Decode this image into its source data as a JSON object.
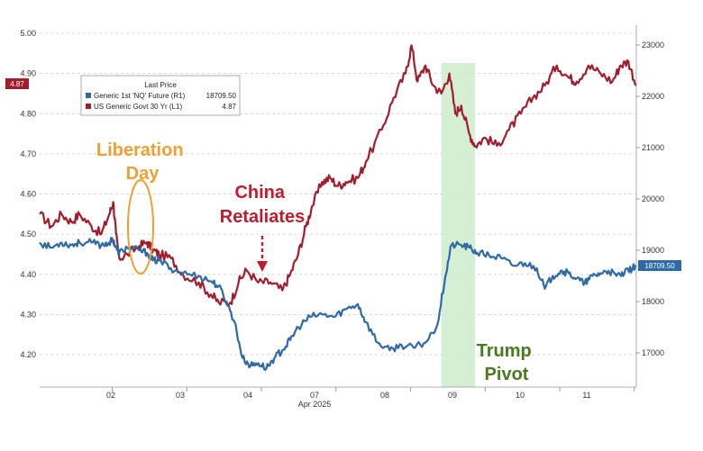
{
  "chart_data": {
    "type": "line",
    "x_label": "Apr 2025",
    "x_ticks": [
      "02",
      "03",
      "04",
      "07",
      "08",
      "09",
      "10",
      "11"
    ],
    "y_left": {
      "range": [
        4.12,
        5.0
      ],
      "ticks": [
        "5.00",
        "4.90",
        "4.80",
        "4.70",
        "4.60",
        "4.50",
        "4.40",
        "4.30",
        "4.20"
      ]
    },
    "y_right": {
      "range": [
        16450,
        23300
      ],
      "ticks": [
        "23000",
        "22000",
        "21000",
        "20000",
        "19000",
        "18000",
        "17000"
      ]
    },
    "grid": true,
    "legend": {
      "title": "Last Price",
      "placement": "top-left",
      "entries": [
        {
          "label": "Generic 1st 'NQ' Future (R1)",
          "value": "18709.50",
          "color": "#2d6aa6"
        },
        {
          "label": "US Generic Govt 30 Yr (L1)",
          "value": "4.87",
          "color": "#a21d2c"
        }
      ]
    },
    "current_labels": {
      "left": "4.87",
      "right": "18709.50"
    },
    "series": [
      {
        "name": "US Generic Govt 30 Yr (L1)",
        "axis": "left",
        "color": "#a21d2c",
        "points": [
          [
            0.0,
            4.55
          ],
          [
            0.3,
            4.52
          ],
          [
            0.55,
            4.55
          ],
          [
            0.8,
            4.53
          ],
          [
            1.0,
            4.55
          ],
          [
            1.3,
            4.52
          ],
          [
            1.55,
            4.5
          ],
          [
            1.75,
            4.55
          ],
          [
            1.85,
            4.58
          ],
          [
            1.92,
            4.5
          ],
          [
            2.0,
            4.44
          ],
          [
            2.2,
            4.45
          ],
          [
            2.5,
            4.47
          ],
          [
            2.7,
            4.48
          ],
          [
            2.85,
            4.46
          ],
          [
            3.0,
            4.45
          ],
          [
            3.3,
            4.44
          ],
          [
            3.6,
            4.4
          ],
          [
            4.0,
            4.38
          ],
          [
            4.3,
            4.35
          ],
          [
            4.5,
            4.33
          ],
          [
            4.8,
            4.33
          ],
          [
            5.0,
            4.38
          ],
          [
            5.2,
            4.41
          ],
          [
            5.5,
            4.38
          ],
          [
            5.8,
            4.38
          ],
          [
            6.1,
            4.36
          ],
          [
            6.3,
            4.4
          ],
          [
            6.5,
            4.45
          ],
          [
            6.7,
            4.52
          ],
          [
            6.85,
            4.57
          ],
          [
            7.1,
            4.63
          ],
          [
            7.3,
            4.64
          ],
          [
            7.5,
            4.62
          ],
          [
            7.7,
            4.63
          ],
          [
            8.0,
            4.64
          ],
          [
            8.2,
            4.68
          ],
          [
            8.6,
            4.76
          ],
          [
            8.9,
            4.84
          ],
          [
            9.2,
            4.9
          ],
          [
            9.35,
            4.97
          ],
          [
            9.5,
            4.88
          ],
          [
            9.7,
            4.92
          ],
          [
            9.9,
            4.87
          ],
          [
            10.1,
            4.85
          ],
          [
            10.3,
            4.9
          ],
          [
            10.45,
            4.8
          ],
          [
            10.6,
            4.82
          ],
          [
            10.8,
            4.75
          ],
          [
            10.95,
            4.72
          ],
          [
            11.2,
            4.74
          ],
          [
            11.5,
            4.72
          ],
          [
            11.8,
            4.76
          ],
          [
            12.1,
            4.8
          ],
          [
            12.4,
            4.84
          ],
          [
            12.7,
            4.87
          ],
          [
            13.0,
            4.92
          ],
          [
            13.3,
            4.89
          ],
          [
            13.5,
            4.88
          ],
          [
            13.8,
            4.92
          ],
          [
            14.1,
            4.9
          ],
          [
            14.4,
            4.88
          ],
          [
            14.6,
            4.92
          ],
          [
            14.8,
            4.93
          ],
          [
            15.0,
            4.87
          ]
        ]
      },
      {
        "name": "Generic 1st 'NQ' Future (R1)",
        "axis": "right",
        "color": "#2d6aa6",
        "points": [
          [
            0.0,
            19150
          ],
          [
            0.3,
            19050
          ],
          [
            0.55,
            19150
          ],
          [
            0.8,
            19100
          ],
          [
            1.0,
            19150
          ],
          [
            1.3,
            19150
          ],
          [
            1.55,
            19100
          ],
          [
            1.75,
            19150
          ],
          [
            1.85,
            19200
          ],
          [
            1.92,
            19050
          ],
          [
            2.0,
            18950
          ],
          [
            2.2,
            19050
          ],
          [
            2.5,
            19000
          ],
          [
            2.7,
            18950
          ],
          [
            2.85,
            18800
          ],
          [
            3.0,
            18800
          ],
          [
            3.3,
            18650
          ],
          [
            3.6,
            18550
          ],
          [
            4.0,
            18500
          ],
          [
            4.3,
            18400
          ],
          [
            4.5,
            18300
          ],
          [
            4.7,
            18000
          ],
          [
            4.9,
            17600
          ],
          [
            5.1,
            16900
          ],
          [
            5.3,
            16750
          ],
          [
            5.5,
            16800
          ],
          [
            5.7,
            16700
          ],
          [
            5.9,
            16900
          ],
          [
            6.1,
            17050
          ],
          [
            6.3,
            17250
          ],
          [
            6.5,
            17500
          ],
          [
            6.8,
            17700
          ],
          [
            7.1,
            17750
          ],
          [
            7.4,
            17700
          ],
          [
            7.7,
            17850
          ],
          [
            8.0,
            17950
          ],
          [
            8.2,
            17600
          ],
          [
            8.5,
            17200
          ],
          [
            8.8,
            17050
          ],
          [
            9.1,
            17150
          ],
          [
            9.4,
            17100
          ],
          [
            9.7,
            17200
          ],
          [
            10.0,
            17550
          ],
          [
            10.2,
            18500
          ],
          [
            10.35,
            19100
          ],
          [
            10.6,
            19100
          ],
          [
            10.8,
            19050
          ],
          [
            11.0,
            18950
          ],
          [
            11.3,
            18900
          ],
          [
            11.6,
            18850
          ],
          [
            11.9,
            18700
          ],
          [
            12.2,
            18750
          ],
          [
            12.5,
            18650
          ],
          [
            12.7,
            18250
          ],
          [
            12.9,
            18500
          ],
          [
            13.1,
            18600
          ],
          [
            13.3,
            18550
          ],
          [
            13.5,
            18450
          ],
          [
            13.7,
            18350
          ],
          [
            13.9,
            18500
          ],
          [
            14.1,
            18550
          ],
          [
            14.3,
            18600
          ],
          [
            14.5,
            18500
          ],
          [
            14.7,
            18550
          ],
          [
            14.9,
            18650
          ],
          [
            15.0,
            18709.5
          ]
        ]
      }
    ],
    "annotations": [
      {
        "text": "Liberation\nDay",
        "color": "#f0a030"
      },
      {
        "text": "China\nRetaliates",
        "color": "#c21c2c"
      },
      {
        "text": "Trump\nPivot",
        "color": "#4a7a1e"
      }
    ],
    "shaded_region": {
      "color": "#cdeccd"
    }
  }
}
